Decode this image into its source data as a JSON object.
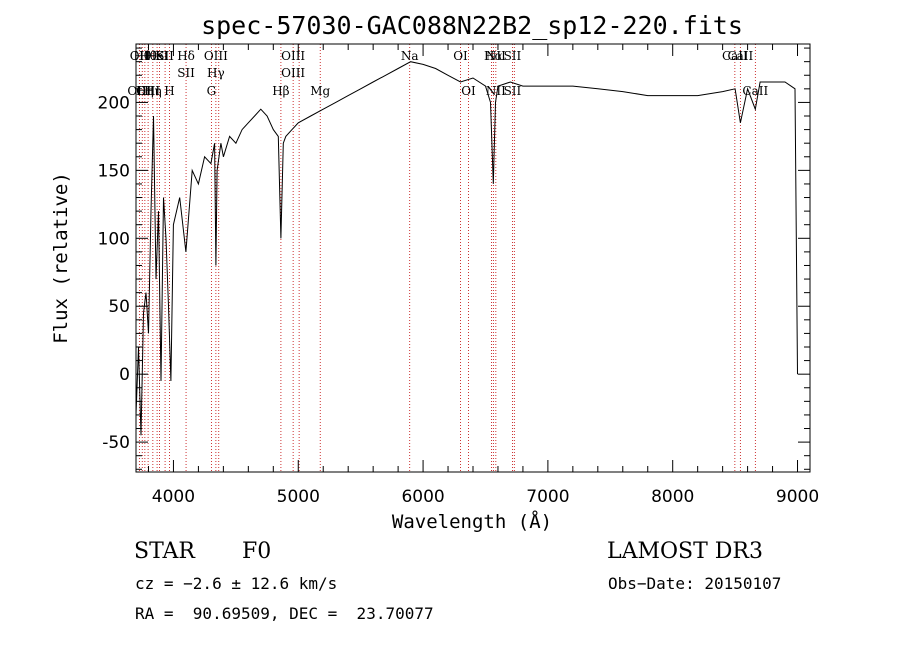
{
  "chart_data": {
    "type": "line",
    "title": "spec-57030-GAC088N22B2_sp12-220.fits",
    "xlabel": "Wavelength (Å)",
    "ylabel": "Flux (relative)",
    "xlim": [
      3700,
      9100
    ],
    "ylim": [
      -72,
      243
    ],
    "xticks": [
      4000,
      5000,
      6000,
      7000,
      8000,
      9000
    ],
    "yticks": [
      -50,
      0,
      50,
      100,
      150,
      200
    ],
    "grid": false,
    "line_color": "#000000",
    "marker_color": "#c00000",
    "series": [
      {
        "x": [
          3700,
          3720,
          3740,
          3760,
          3780,
          3800,
          3820,
          3840,
          3860,
          3880,
          3900,
          3920,
          3940,
          3960,
          3980,
          4000,
          4050,
          4100,
          4150,
          4200,
          4250,
          4300,
          4330,
          4340,
          4350,
          4380,
          4400,
          4450,
          4500,
          4550,
          4600,
          4650,
          4700,
          4750,
          4800,
          4840,
          4861,
          4880,
          4900,
          4950,
          5000,
          5100,
          5200,
          5300,
          5400,
          5500,
          5600,
          5700,
          5800,
          5900,
          6000,
          6100,
          6200,
          6300,
          6400,
          6500,
          6540,
          6563,
          6580,
          6600,
          6700,
          6800,
          7000,
          7200,
          7400,
          7600,
          7800,
          8000,
          8200,
          8400,
          8500,
          8542,
          8600,
          8662,
          8700,
          8800,
          8900,
          8980,
          9000
        ],
        "y": [
          -30,
          20,
          -45,
          45,
          60,
          30,
          120,
          190,
          70,
          120,
          -5,
          130,
          100,
          50,
          -5,
          110,
          130,
          90,
          150,
          140,
          160,
          155,
          170,
          80,
          150,
          170,
          160,
          175,
          170,
          180,
          185,
          190,
          195,
          190,
          180,
          175,
          100,
          170,
          175,
          180,
          185,
          190,
          195,
          200,
          205,
          210,
          215,
          220,
          225,
          230,
          228,
          225,
          220,
          215,
          218,
          212,
          200,
          140,
          200,
          212,
          215,
          212,
          212,
          212,
          210,
          208,
          205,
          205,
          205,
          208,
          210,
          185,
          210,
          195,
          215,
          215,
          215,
          210,
          0
        ]
      }
    ],
    "lines": [
      {
        "x": 3727,
        "top": [
          "OII"
        ],
        "bottom": [
          "OIII"
        ]
      },
      {
        "x": 3750,
        "top": [
          "Hθ"
        ],
        "bottom": []
      },
      {
        "x": 3771,
        "top": [],
        "bottom": [
          "Hη"
        ]
      },
      {
        "x": 3797,
        "top": [
          "Hθ"
        ],
        "bottom": [
          "OIII"
        ]
      },
      {
        "x": 3835,
        "top": [],
        "bottom": [
          "Hη"
        ]
      },
      {
        "x": 3869,
        "top": [
          "HeI"
        ],
        "bottom": []
      },
      {
        "x": 3889,
        "top": [
          "K"
        ],
        "bottom": []
      },
      {
        "x": 3933,
        "top": [
          "SII"
        ],
        "bottom": []
      },
      {
        "x": 3968,
        "top": [],
        "bottom": [
          "H"
        ]
      },
      {
        "x": 4101,
        "top": [
          "Hδ",
          "SII"
        ],
        "bottom": []
      },
      {
        "x": 4304,
        "top": [],
        "bottom": [
          "G"
        ]
      },
      {
        "x": 4340,
        "top": [
          "OIII",
          "Hγ"
        ],
        "bottom": []
      },
      {
        "x": 4363,
        "top": [],
        "bottom": []
      },
      {
        "x": 4861,
        "top": [],
        "bottom": [
          "Hβ"
        ]
      },
      {
        "x": 4959,
        "top": [
          "OIII",
          "OIII"
        ],
        "bottom": []
      },
      {
        "x": 5007,
        "top": [],
        "bottom": []
      },
      {
        "x": 5176,
        "top": [],
        "bottom": [
          "Mg"
        ]
      },
      {
        "x": 5893,
        "top": [
          "Na"
        ],
        "bottom": []
      },
      {
        "x": 6300,
        "top": [
          "OI"
        ],
        "bottom": []
      },
      {
        "x": 6364,
        "top": [],
        "bottom": [
          "OI"
        ]
      },
      {
        "x": 6548,
        "top": [],
        "bottom": []
      },
      {
        "x": 6563,
        "top": [
          "Hα"
        ],
        "bottom": []
      },
      {
        "x": 6583,
        "top": [
          "NII"
        ],
        "bottom": [
          "NII"
        ]
      },
      {
        "x": 6716,
        "top": [
          "SII"
        ],
        "bottom": [
          "SII"
        ]
      },
      {
        "x": 6731,
        "top": [],
        "bottom": []
      },
      {
        "x": 8498,
        "top": [
          "CaII"
        ],
        "bottom": []
      },
      {
        "x": 8542,
        "top": [
          "CaII"
        ],
        "bottom": []
      },
      {
        "x": 8662,
        "top": [],
        "bottom": [
          "CaII"
        ]
      }
    ]
  },
  "info": {
    "obj_class": "STAR",
    "subclass": "F0",
    "survey": "LAMOST DR3",
    "cz": "cz = −2.6 ± 12.6 km/s",
    "obs_date": "Obs−Date: 20150107",
    "coords": "RA =  90.69509, DEC =  23.70077"
  }
}
